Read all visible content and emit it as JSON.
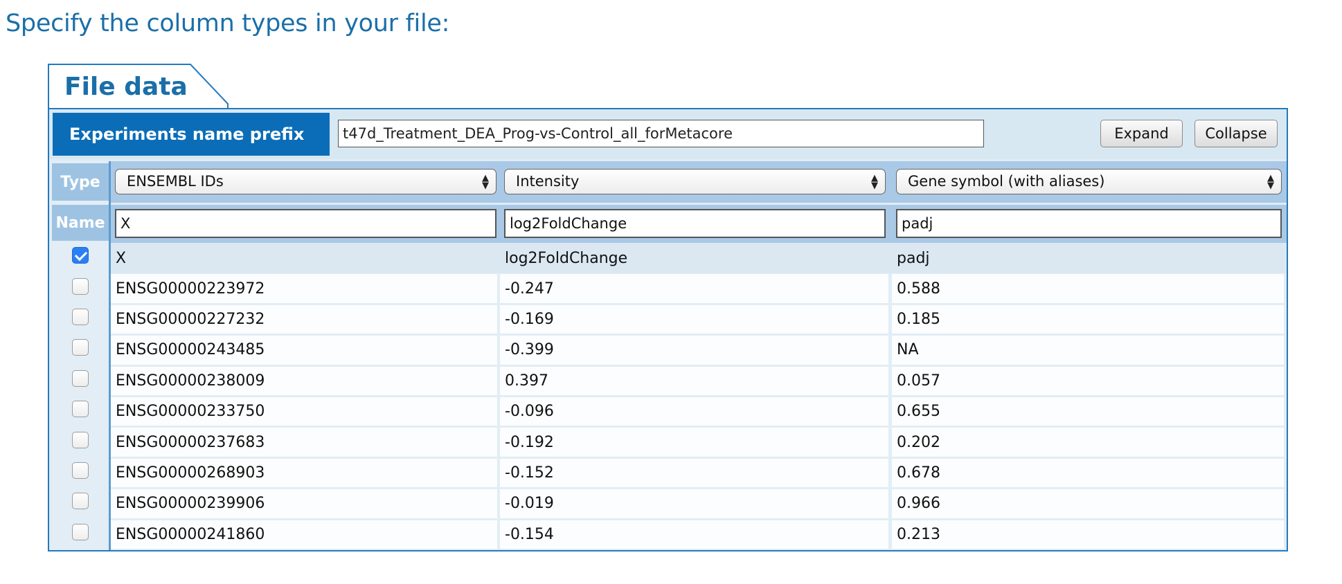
{
  "heading": "Specify the column types in your file:",
  "tab": {
    "label": "File data"
  },
  "prefix": {
    "label": "Experiments name prefix",
    "value": "t47d_Treatment_DEA_Prog-vs-Control_all_forMetacore"
  },
  "buttons": {
    "expand": "Expand",
    "collapse": "Collapse"
  },
  "side_labels": {
    "type": "Type",
    "name": "Name"
  },
  "columns": [
    {
      "type": "ENSEMBL IDs",
      "name": "X",
      "header": "X"
    },
    {
      "type": "Intensity",
      "name": "log2FoldChange",
      "header": "log2FoldChange"
    },
    {
      "type": "Gene symbol (with aliases)",
      "name": "padj",
      "header": "padj"
    }
  ],
  "header_checked": true,
  "rows": [
    {
      "checked": false,
      "cells": [
        "ENSG00000223972",
        "-0.247",
        "0.588"
      ]
    },
    {
      "checked": false,
      "cells": [
        "ENSG00000227232",
        "-0.169",
        "0.185"
      ]
    },
    {
      "checked": false,
      "cells": [
        "ENSG00000243485",
        "-0.399",
        "NA"
      ]
    },
    {
      "checked": false,
      "cells": [
        "ENSG00000238009",
        "0.397",
        "0.057"
      ]
    },
    {
      "checked": false,
      "cells": [
        "ENSG00000233750",
        "-0.096",
        "0.655"
      ]
    },
    {
      "checked": false,
      "cells": [
        "ENSG00000237683",
        "-0.192",
        "0.202"
      ]
    },
    {
      "checked": false,
      "cells": [
        "ENSG00000268903",
        "-0.152",
        "0.678"
      ]
    },
    {
      "checked": false,
      "cells": [
        "ENSG00000239906",
        "-0.019",
        "0.966"
      ]
    },
    {
      "checked": false,
      "cells": [
        "ENSG00000241860",
        "-0.154",
        "0.213"
      ]
    }
  ],
  "colors": {
    "accent": "#0b6db7",
    "heading": "#1a6fa8",
    "panel_border": "#2379bd",
    "side_label_bg": "#9ec3e2"
  },
  "icons": {
    "select_arrows": "updown-arrows-icon",
    "checkbox_checked": "check-icon"
  }
}
